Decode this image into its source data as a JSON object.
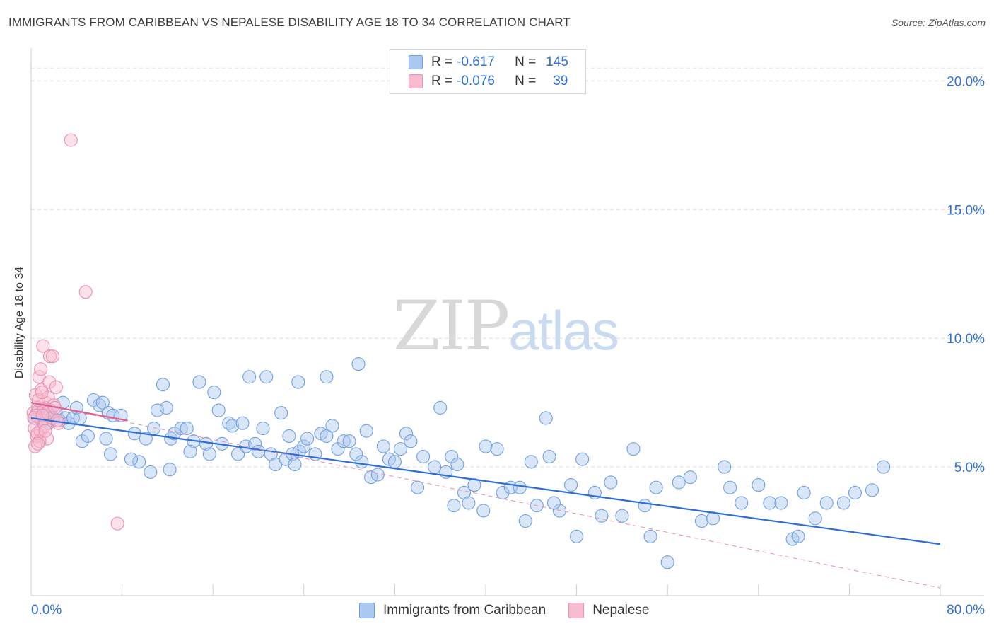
{
  "title": "IMMIGRANTS FROM CARIBBEAN VS NEPALESE DISABILITY AGE 18 TO 34 CORRELATION CHART",
  "source": "Source: ZipAtlas.com",
  "watermark": {
    "zip": "ZIP",
    "atlas": "atlas"
  },
  "legend": {
    "rows": [
      {
        "r_label": "R =",
        "r_value": "-0.617",
        "n_label": "N =",
        "n_value": "145",
        "color": "#aac8f0",
        "border": "#6f9fe0"
      },
      {
        "r_label": "R =",
        "r_value": "-0.076",
        "n_label": "N =",
        "n_value": "39",
        "color": "#f8bcd0",
        "border": "#ea8fae"
      }
    ]
  },
  "bottom_legend": [
    {
      "label": "Immigrants from Caribbean",
      "color": "#aac8f0",
      "border": "#6f9fe0"
    },
    {
      "label": "Nepalese",
      "color": "#f8bcd0",
      "border": "#ea8fae"
    }
  ],
  "chart_data": {
    "type": "scatter",
    "title": "IMMIGRANTS FROM CARIBBEAN VS NEPALESE DISABILITY AGE 18 TO 34 CORRELATION CHART",
    "xlabel": "",
    "ylabel": "Disability Age 18 to 34",
    "xlim": [
      0,
      80
    ],
    "ylim": [
      0,
      21
    ],
    "x_tick_labels": [
      "0.0%",
      "80.0%"
    ],
    "y_ticks": [
      5,
      10,
      15,
      20
    ],
    "y_tick_labels": [
      "5.0%",
      "10.0%",
      "15.0%",
      "20.0%"
    ],
    "grid": true,
    "colors": {
      "caribbean": "#2e6fd6",
      "nepalese": "#e0608f",
      "axis_text": "#2e6fd6"
    },
    "series": [
      {
        "name": "Immigrants from Caribbean",
        "trend": {
          "x": [
            0,
            80
          ],
          "y": [
            6.9,
            2.0
          ],
          "style": "solid"
        },
        "points": [
          [
            0.3,
            6.9
          ],
          [
            0.5,
            7.1
          ],
          [
            0.7,
            7.2
          ],
          [
            0.9,
            6.8
          ],
          [
            1.1,
            7.0
          ],
          [
            1.3,
            7.3
          ],
          [
            1.5,
            6.7
          ],
          [
            1.7,
            7.2
          ],
          [
            1.9,
            6.9
          ],
          [
            2.2,
            7.1
          ],
          [
            2.5,
            6.8
          ],
          [
            2.8,
            7.5
          ],
          [
            3.0,
            6.9
          ],
          [
            3.3,
            6.7
          ],
          [
            3.7,
            6.9
          ],
          [
            4.0,
            7.3
          ],
          [
            4.3,
            6.9
          ],
          [
            5.5,
            7.6
          ],
          [
            6.0,
            7.4
          ],
          [
            6.3,
            7.5
          ],
          [
            6.8,
            7.1
          ],
          [
            7.2,
            7.0
          ],
          [
            4.5,
            6.0
          ],
          [
            5.0,
            6.2
          ],
          [
            6.6,
            6.1
          ],
          [
            7.0,
            5.5
          ],
          [
            7.9,
            7.0
          ],
          [
            9.1,
            6.3
          ],
          [
            10.1,
            6.1
          ],
          [
            10.8,
            6.5
          ],
          [
            11.1,
            7.2
          ],
          [
            11.6,
            8.2
          ],
          [
            11.9,
            7.3
          ],
          [
            12.3,
            6.1
          ],
          [
            12.6,
            6.3
          ],
          [
            13.2,
            6.5
          ],
          [
            13.7,
            6.5
          ],
          [
            14.3,
            6.0
          ],
          [
            14.8,
            8.3
          ],
          [
            15.4,
            5.9
          ],
          [
            15.7,
            5.5
          ],
          [
            16.1,
            7.9
          ],
          [
            16.8,
            5.9
          ],
          [
            17.4,
            6.7
          ],
          [
            17.7,
            6.6
          ],
          [
            18.2,
            5.5
          ],
          [
            18.6,
            6.7
          ],
          [
            18.9,
            5.8
          ],
          [
            19.2,
            8.5
          ],
          [
            19.7,
            5.9
          ],
          [
            20.0,
            5.6
          ],
          [
            20.4,
            6.5
          ],
          [
            20.7,
            8.5
          ],
          [
            21.1,
            5.5
          ],
          [
            21.5,
            5.1
          ],
          [
            22.0,
            7.1
          ],
          [
            22.4,
            5.3
          ],
          [
            22.7,
            6.2
          ],
          [
            23.0,
            5.5
          ],
          [
            23.2,
            5.1
          ],
          [
            23.6,
            5.6
          ],
          [
            24.0,
            5.8
          ],
          [
            24.3,
            6.1
          ],
          [
            25.0,
            5.5
          ],
          [
            25.5,
            6.3
          ],
          [
            26.0,
            6.2
          ],
          [
            26.5,
            6.6
          ],
          [
            27.0,
            5.7
          ],
          [
            27.5,
            6.0
          ],
          [
            28.0,
            6.0
          ],
          [
            28.6,
            5.5
          ],
          [
            29.1,
            5.2
          ],
          [
            29.5,
            6.4
          ],
          [
            29.9,
            4.6
          ],
          [
            30.5,
            4.7
          ],
          [
            31.0,
            5.8
          ],
          [
            31.5,
            5.3
          ],
          [
            32.0,
            5.2
          ],
          [
            32.5,
            5.7
          ],
          [
            33.0,
            6.3
          ],
          [
            33.4,
            6.0
          ],
          [
            34.5,
            5.4
          ],
          [
            35.5,
            5.0
          ],
          [
            36.0,
            7.3
          ],
          [
            36.5,
            4.8
          ],
          [
            37.0,
            5.4
          ],
          [
            37.5,
            5.1
          ],
          [
            38.1,
            4.0
          ],
          [
            38.5,
            3.6
          ],
          [
            39.0,
            4.3
          ],
          [
            40.0,
            5.8
          ],
          [
            41.0,
            5.7
          ],
          [
            41.5,
            4.0
          ],
          [
            42.2,
            4.2
          ],
          [
            43.0,
            4.2
          ],
          [
            44.0,
            5.2
          ],
          [
            44.5,
            3.5
          ],
          [
            45.3,
            6.9
          ],
          [
            45.6,
            5.4
          ],
          [
            46.5,
            3.3
          ],
          [
            47.5,
            4.3
          ],
          [
            48.0,
            2.3
          ],
          [
            48.5,
            5.3
          ],
          [
            49.6,
            4.0
          ],
          [
            50.2,
            3.1
          ],
          [
            51.0,
            4.4
          ],
          [
            52.0,
            3.1
          ],
          [
            53.0,
            5.7
          ],
          [
            54.0,
            3.5
          ],
          [
            54.5,
            2.3
          ],
          [
            55.0,
            4.2
          ],
          [
            56.0,
            1.3
          ],
          [
            57.0,
            4.4
          ],
          [
            58.0,
            4.6
          ],
          [
            59.0,
            2.9
          ],
          [
            60.0,
            3.0
          ],
          [
            61.0,
            5.0
          ],
          [
            61.5,
            4.2
          ],
          [
            62.5,
            3.6
          ],
          [
            64.0,
            4.3
          ],
          [
            65.0,
            3.6
          ],
          [
            66.0,
            3.6
          ],
          [
            67.0,
            2.2
          ],
          [
            67.5,
            2.3
          ],
          [
            68.0,
            4.0
          ],
          [
            69.0,
            3.0
          ],
          [
            70.0,
            3.6
          ],
          [
            71.5,
            3.6
          ],
          [
            72.5,
            4.0
          ],
          [
            74.0,
            4.1
          ],
          [
            75.0,
            5.0
          ],
          [
            28.8,
            9.0
          ],
          [
            23.5,
            8.3
          ],
          [
            26.0,
            8.5
          ],
          [
            16.5,
            7.2
          ],
          [
            9.5,
            5.2
          ],
          [
            12.2,
            4.9
          ],
          [
            10.5,
            4.8
          ],
          [
            14.0,
            5.6
          ],
          [
            8.8,
            5.3
          ],
          [
            34.0,
            4.2
          ],
          [
            37.2,
            3.5
          ],
          [
            39.8,
            3.3
          ],
          [
            43.5,
            2.9
          ],
          [
            46.0,
            3.6
          ]
        ]
      },
      {
        "name": "Nepalese",
        "trend": {
          "x": [
            0,
            8.5
          ],
          "y": [
            7.5,
            6.8
          ],
          "style": "solid"
        },
        "trend_extended": {
          "x": [
            0,
            80
          ],
          "y": [
            7.5,
            0.3
          ],
          "style": "dashed"
        },
        "points": [
          [
            0.2,
            7.1
          ],
          [
            0.3,
            6.5
          ],
          [
            0.35,
            5.8
          ],
          [
            0.4,
            7.8
          ],
          [
            0.5,
            6.2
          ],
          [
            0.6,
            7.3
          ],
          [
            0.7,
            8.5
          ],
          [
            0.8,
            6.4
          ],
          [
            0.9,
            8.0
          ],
          [
            1.0,
            6.8
          ],
          [
            1.1,
            7.2
          ],
          [
            1.2,
            6.6
          ],
          [
            1.3,
            7.5
          ],
          [
            1.4,
            6.1
          ],
          [
            1.5,
            7.7
          ],
          [
            1.6,
            8.3
          ],
          [
            1.8,
            6.9
          ],
          [
            2.0,
            7.4
          ],
          [
            2.2,
            8.1
          ],
          [
            2.4,
            6.7
          ],
          [
            0.45,
            7.0
          ],
          [
            0.55,
            6.3
          ],
          [
            0.65,
            7.6
          ],
          [
            0.75,
            6.0
          ],
          [
            0.85,
            8.8
          ],
          [
            0.95,
            7.9
          ],
          [
            1.05,
            9.7
          ],
          [
            1.25,
            6.4
          ],
          [
            1.45,
            7.1
          ],
          [
            1.65,
            9.3
          ],
          [
            1.9,
            9.3
          ],
          [
            2.1,
            7.3
          ],
          [
            2.3,
            6.8
          ],
          [
            0.25,
            6.9
          ],
          [
            0.6,
            5.9
          ],
          [
            1.0,
            7.0
          ],
          [
            3.5,
            17.7
          ],
          [
            4.8,
            11.8
          ],
          [
            7.6,
            2.8
          ]
        ]
      }
    ]
  }
}
